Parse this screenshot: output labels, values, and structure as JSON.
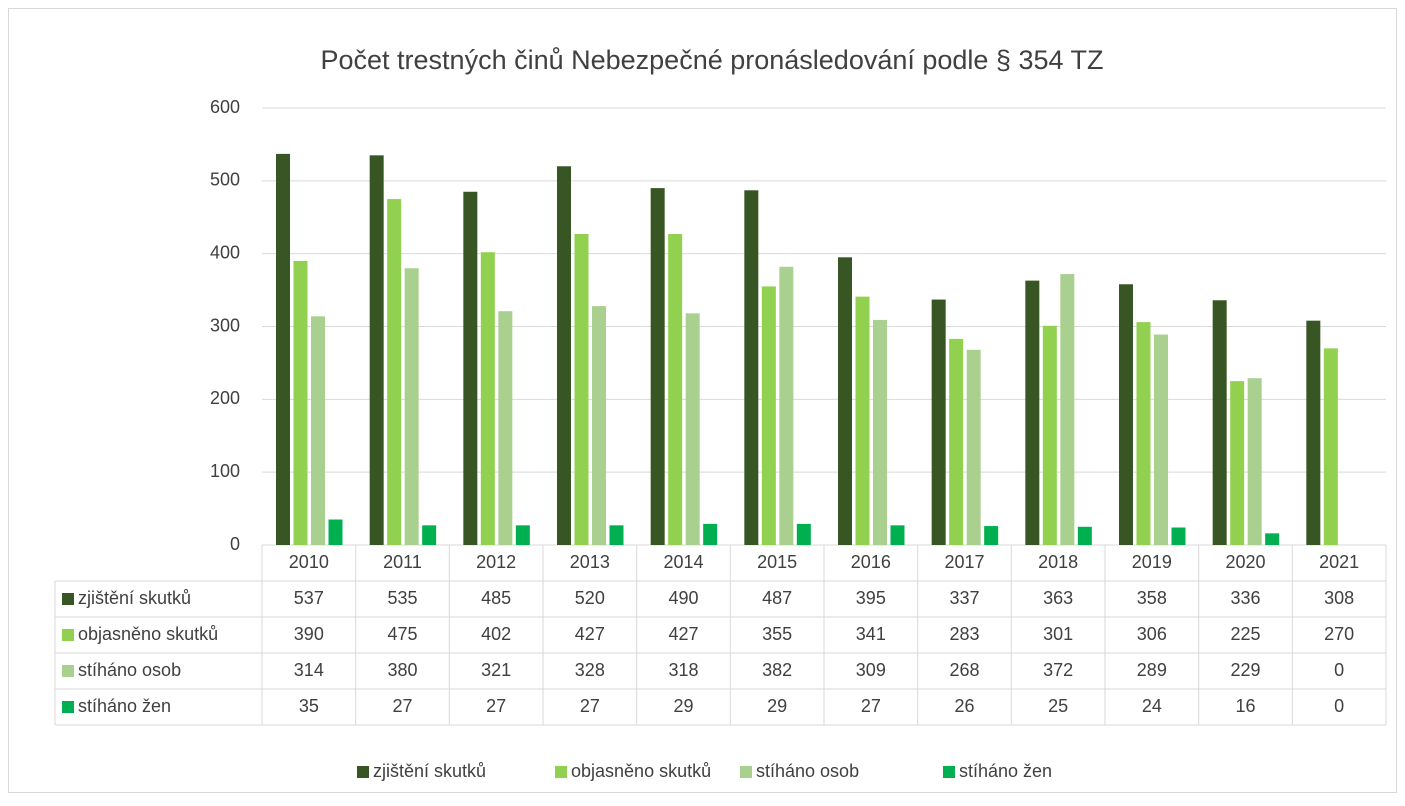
{
  "chart_data": {
    "type": "bar",
    "title": "Počet trestných činů Nebezpečné pronásledování podle § 354 TZ",
    "categories": [
      "2010",
      "2011",
      "2012",
      "2013",
      "2014",
      "2015",
      "2016",
      "2017",
      "2018",
      "2019",
      "2020",
      "2021"
    ],
    "series": [
      {
        "name": "zjištění skutků",
        "color": "#375623",
        "values": [
          537,
          535,
          485,
          520,
          490,
          487,
          395,
          337,
          363,
          358,
          336,
          308
        ]
      },
      {
        "name": "objasněno skutků",
        "color": "#92d050",
        "values": [
          390,
          475,
          402,
          427,
          427,
          355,
          341,
          283,
          301,
          306,
          225,
          270
        ]
      },
      {
        "name": "stíháno osob",
        "color": "#a9d08e",
        "values": [
          314,
          380,
          321,
          328,
          318,
          382,
          309,
          268,
          372,
          289,
          229,
          0
        ]
      },
      {
        "name": "stíháno žen",
        "color": "#00b050",
        "values": [
          35,
          27,
          27,
          27,
          29,
          29,
          27,
          26,
          25,
          24,
          16,
          0
        ]
      }
    ],
    "ylim": [
      0,
      600
    ],
    "yticks": [
      0,
      100,
      200,
      300,
      400,
      500,
      600
    ],
    "grid": true,
    "legend": "bottom"
  }
}
